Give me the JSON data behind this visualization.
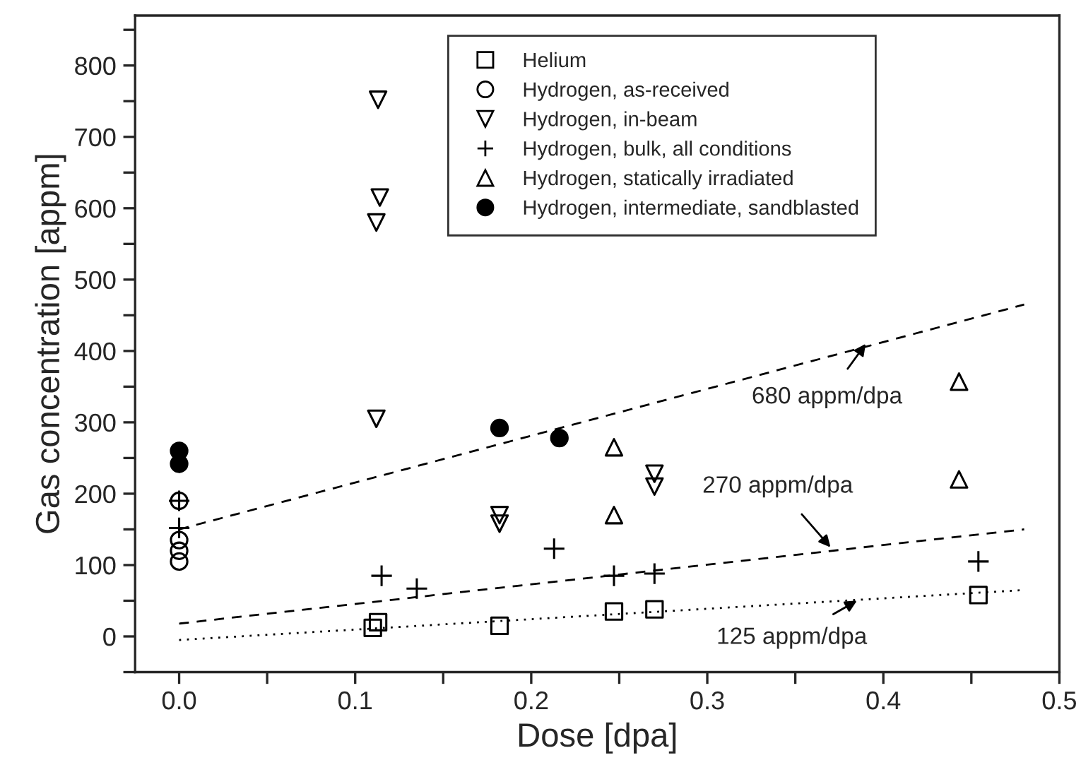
{
  "chart_data": {
    "type": "scatter",
    "xlabel": "Dose [dpa]",
    "ylabel": "Gas concentration [appm]",
    "xlim": [
      -0.025,
      0.5
    ],
    "ylim": [
      -50,
      870
    ],
    "xticks": [
      {
        "value": 0,
        "label": "0.0"
      },
      {
        "value": 0.05,
        "label": null
      },
      {
        "value": 0.1,
        "label": "0.1"
      },
      {
        "value": 0.15,
        "label": null
      },
      {
        "value": 0.2,
        "label": "0.2"
      },
      {
        "value": 0.25,
        "label": null
      },
      {
        "value": 0.3,
        "label": "0.3"
      },
      {
        "value": 0.35,
        "label": null
      },
      {
        "value": 0.4,
        "label": "0.4"
      },
      {
        "value": 0.45,
        "label": null
      },
      {
        "value": 0.5,
        "label": "0.5"
      }
    ],
    "yticks": [
      {
        "value": -50,
        "label": null
      },
      0,
      {
        "value": 50,
        "label": null
      },
      100,
      {
        "value": 150,
        "label": null
      },
      200,
      {
        "value": 250,
        "label": null
      },
      300,
      {
        "value": 350,
        "label": null
      },
      400,
      {
        "value": 450,
        "label": null
      },
      500,
      {
        "value": 550,
        "label": null
      },
      600,
      {
        "value": 650,
        "label": null
      },
      700,
      {
        "value": 750,
        "label": null
      },
      800,
      {
        "value": 850,
        "label": null
      }
    ],
    "legend": "top",
    "grid": false,
    "series": [
      {
        "name": "Helium",
        "color": "#000000",
        "marker": "square",
        "x": [
          0.11,
          0.113,
          0.182,
          0.247,
          0.27,
          0.454
        ],
        "values": [
          12,
          20,
          15,
          35,
          38,
          58
        ]
      },
      {
        "name": "Hydrogen, as-received",
        "color": "#000000",
        "marker": "circle",
        "x": [
          0,
          0,
          0,
          0
        ],
        "values": [
          105,
          120,
          135,
          190
        ]
      },
      {
        "name": "Hydrogen, in-beam",
        "color": "#000000",
        "marker": "triangle_down",
        "x": [
          0.113,
          0.114,
          0.112,
          0.112,
          0.182,
          0.182,
          0.27,
          0.27
        ],
        "values": [
          752,
          615,
          580,
          305,
          170,
          158,
          228,
          210
        ]
      },
      {
        "name": "Hydrogen, bulk, all conditions",
        "color": "#000000",
        "marker": "cross",
        "x": [
          0,
          0,
          0.115,
          0.135,
          0.213,
          0.247,
          0.27,
          0.454
        ],
        "values": [
          190,
          152,
          85,
          67,
          123,
          85,
          88,
          105
        ]
      },
      {
        "name": "Hydrogen, statically irradiated",
        "color": "#000000",
        "marker": "triangle",
        "x": [
          0.247,
          0.247,
          0.443,
          0.443
        ],
        "values": [
          265,
          170,
          357,
          220
        ]
      },
      {
        "name": "Hydrogen, intermediate, sandblasted",
        "color": "#000000",
        "marker": "filled_circle",
        "x": [
          0,
          0,
          0.182,
          0.216
        ],
        "values": [
          260,
          242,
          292,
          278
        ]
      },
      {
        "type": "line",
        "color": "#000000",
        "line_style": "dashed",
        "x": [
          0,
          0.48
        ],
        "values": [
          150,
          465
        ]
      },
      {
        "type": "line",
        "color": "#000000",
        "line_style": "dashed",
        "x": [
          0,
          0.48
        ],
        "values": [
          18,
          150
        ]
      },
      {
        "type": "line",
        "color": "#000000",
        "line_style": "dotted",
        "x": [
          0,
          0.48
        ],
        "values": [
          -5,
          65
        ]
      }
    ],
    "annotations": [
      {
        "text": "680 appm/dpa",
        "x": 0.39,
        "y": 410
      },
      {
        "text": "270 appm/dpa",
        "x": 0.37,
        "y": 125
      },
      {
        "text": "125 appm/dpa",
        "x": 0.385,
        "y": 50
      }
    ]
  }
}
